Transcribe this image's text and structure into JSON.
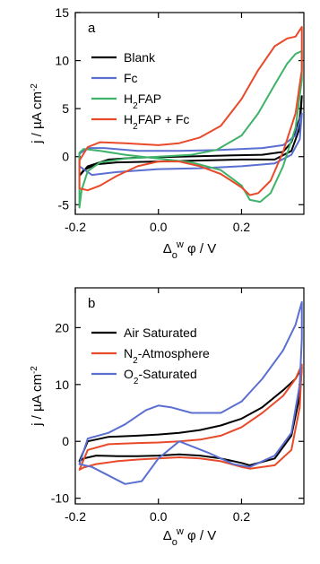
{
  "chart_data": [
    {
      "type": "line",
      "panel_label": "a",
      "xlabel": "Δ_o^w φ / V",
      "ylabel": "j / µA cm^-2",
      "xlim": [
        -0.2,
        0.35
      ],
      "ylim": [
        -6,
        15
      ],
      "x_ticks": [
        -0.2,
        0.0,
        0.2
      ],
      "x_tick_labels": [
        "-0.2",
        "0.0",
        "0.2"
      ],
      "y_ticks": [
        -5,
        0,
        5,
        10,
        15
      ],
      "y_tick_labels": [
        "-5",
        "0",
        "5",
        "10",
        "15"
      ],
      "legend_position": "top-left",
      "series": [
        {
          "name": "Blank",
          "color": "#000000",
          "x": [
            -0.19,
            -0.17,
            -0.12,
            -0.05,
            0.05,
            0.15,
            0.25,
            0.3,
            0.32,
            0.34,
            0.345,
            0.34,
            0.32,
            0.28,
            0.2,
            0.1,
            0.0,
            -0.1,
            -0.15,
            -0.18,
            -0.19
          ],
          "y": [
            -2.0,
            -1.0,
            -0.3,
            -0.1,
            0.0,
            0.1,
            0.2,
            0.5,
            1.5,
            4.0,
            6.3,
            3.0,
            0.6,
            -0.3,
            -0.3,
            -0.4,
            -0.5,
            -0.6,
            -0.8,
            -1.4,
            -2.0
          ]
        },
        {
          "name": "Fc",
          "color": "#5b6fd1",
          "x": [
            -0.19,
            -0.17,
            -0.13,
            -0.05,
            0.05,
            0.15,
            0.25,
            0.3,
            0.33,
            0.345,
            0.34,
            0.32,
            0.28,
            0.2,
            0.1,
            0.0,
            -0.1,
            -0.16,
            -0.19
          ],
          "y": [
            0.3,
            0.9,
            0.9,
            0.6,
            0.6,
            0.7,
            0.9,
            1.2,
            2.2,
            4.5,
            1.8,
            0.2,
            -0.7,
            -1.0,
            -1.2,
            -1.3,
            -1.6,
            -1.9,
            -1.0
          ]
        },
        {
          "name": "H2FAP",
          "color": "#3fb26a",
          "x": [
            -0.19,
            -0.185,
            -0.17,
            -0.14,
            -0.08,
            0.0,
            0.08,
            0.14,
            0.2,
            0.24,
            0.28,
            0.31,
            0.33,
            0.345,
            0.345,
            0.33,
            0.3,
            0.27,
            0.245,
            0.22,
            0.2,
            0.15,
            0.08,
            0.0,
            -0.08,
            -0.14,
            -0.18,
            -0.19
          ],
          "y": [
            -5.3,
            -3.5,
            -1.5,
            -0.6,
            -0.2,
            0.0,
            0.2,
            0.7,
            2.2,
            4.5,
            7.5,
            9.7,
            10.7,
            11.0,
            8.0,
            3.0,
            -1.0,
            -3.8,
            -4.7,
            -4.5,
            -3.0,
            -1.4,
            -0.6,
            -0.2,
            0.2,
            0.6,
            0.8,
            0.4
          ]
        },
        {
          "name": "H2FAP + Fc",
          "color": "#e84a2a",
          "x": [
            -0.19,
            -0.17,
            -0.14,
            -0.08,
            0.0,
            0.05,
            0.1,
            0.15,
            0.2,
            0.24,
            0.28,
            0.31,
            0.33,
            0.345,
            0.345,
            0.33,
            0.3,
            0.27,
            0.24,
            0.22,
            0.2,
            0.15,
            0.1,
            0.05,
            0.0,
            -0.05,
            -0.1,
            -0.14,
            -0.17,
            -0.19
          ],
          "y": [
            -0.4,
            1.0,
            1.5,
            1.4,
            1.2,
            1.4,
            2.0,
            3.2,
            6.0,
            9.0,
            11.5,
            12.3,
            12.5,
            13.5,
            9.0,
            4.5,
            0.5,
            -2.5,
            -3.8,
            -4.0,
            -3.2,
            -1.8,
            -1.0,
            -0.5,
            -0.5,
            -1.0,
            -2.0,
            -3.0,
            -3.5,
            -3.3
          ]
        }
      ]
    },
    {
      "type": "line",
      "panel_label": "b",
      "xlabel": "Δ_o^w φ / V",
      "ylabel": "j / µA cm^-2",
      "xlim": [
        -0.2,
        0.35
      ],
      "ylim": [
        -11,
        27
      ],
      "x_ticks": [
        -0.2,
        0.0,
        0.2
      ],
      "x_tick_labels": [
        "-0.2",
        "0.0",
        "0.2"
      ],
      "y_ticks": [
        -10,
        0,
        10,
        20
      ],
      "y_tick_labels": [
        "-10",
        "0",
        "10",
        "20"
      ],
      "legend_position": "top-left",
      "series": [
        {
          "name": "Air Saturated",
          "color": "#000000",
          "x": [
            -0.19,
            -0.17,
            -0.12,
            -0.05,
            0.0,
            0.05,
            0.1,
            0.15,
            0.2,
            0.25,
            0.3,
            0.33,
            0.345,
            0.34,
            0.32,
            0.28,
            0.22,
            0.2,
            0.15,
            0.1,
            0.05,
            0.0,
            -0.05,
            -0.1,
            -0.15,
            -0.18,
            -0.19
          ],
          "y": [
            -3.5,
            0.0,
            0.8,
            1.0,
            1.2,
            1.5,
            2.0,
            2.8,
            4.0,
            6.0,
            9.0,
            11.0,
            13.0,
            8.0,
            1.0,
            -3.0,
            -4.2,
            -3.8,
            -3.0,
            -2.5,
            -2.3,
            -2.5,
            -2.6,
            -2.6,
            -2.5,
            -3.0,
            -3.5
          ]
        },
        {
          "name": "N2-Atmosphere",
          "color": "#e84a2a",
          "x": [
            -0.19,
            -0.17,
            -0.12,
            -0.05,
            0.0,
            0.05,
            0.1,
            0.15,
            0.2,
            0.25,
            0.3,
            0.33,
            0.345,
            0.34,
            0.32,
            0.28,
            0.22,
            0.2,
            0.15,
            0.1,
            0.05,
            0.0,
            -0.05,
            -0.1,
            -0.15,
            -0.18,
            -0.19
          ],
          "y": [
            -5.0,
            -1.5,
            -0.5,
            -0.3,
            -0.2,
            0.0,
            0.3,
            1.0,
            2.5,
            5.0,
            8.0,
            11.0,
            13.5,
            6.0,
            -1.5,
            -4.2,
            -4.8,
            -4.5,
            -3.5,
            -3.0,
            -2.8,
            -3.0,
            -3.2,
            -3.5,
            -4.0,
            -4.6,
            -5.0
          ]
        },
        {
          "name": "O2-Saturated",
          "color": "#5b6fd1",
          "x": [
            -0.19,
            -0.17,
            -0.12,
            -0.08,
            -0.03,
            0.0,
            0.03,
            0.08,
            0.15,
            0.2,
            0.25,
            0.3,
            0.33,
            0.345,
            0.345,
            0.34,
            0.32,
            0.28,
            0.22,
            0.18,
            0.12,
            0.05,
            0.0,
            -0.04,
            -0.08,
            -0.12,
            -0.16,
            -0.19
          ],
          "y": [
            -4.0,
            0.5,
            1.5,
            3.0,
            5.5,
            6.3,
            6.0,
            5.0,
            5.0,
            7.0,
            11.0,
            16.0,
            20.5,
            24.5,
            18.0,
            10.0,
            1.5,
            -2.5,
            -4.5,
            -4.0,
            -2.0,
            0.0,
            -3.0,
            -7.0,
            -7.5,
            -6.0,
            -4.5,
            -4.0
          ]
        }
      ]
    }
  ]
}
